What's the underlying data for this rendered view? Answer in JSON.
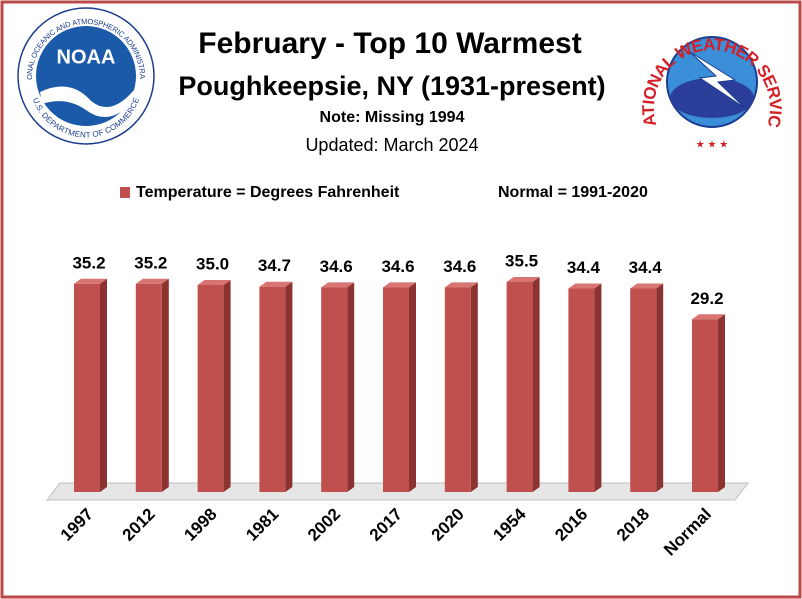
{
  "chart_data": {
    "type": "bar",
    "title": "February - Top 10 Warmest",
    "subtitle": "Poughkeepsie, NY (1931-present)",
    "note": "Note: Missing 1994",
    "updated": "Updated:  March 2024",
    "normal_note": "Normal = 1991-2020",
    "categories": [
      "1997",
      "2012",
      "1998",
      "1981",
      "2002",
      "2017",
      "2020",
      "1954",
      "2016",
      "2018",
      "Normal"
    ],
    "series": [
      {
        "name": "Temperature = Degrees Fahrenheit",
        "color": "#c0504d",
        "values": [
          35.2,
          35.2,
          35.0,
          34.7,
          34.6,
          34.6,
          34.6,
          35.5,
          34.4,
          34.4,
          29.2
        ],
        "value_labels": [
          "35.2",
          "35.2",
          "35.0",
          "34.7",
          "34.6",
          "34.6",
          "34.6",
          "35.5",
          "34.4",
          "34.4",
          "29.2"
        ]
      }
    ],
    "logos": {
      "noaa": "NOAA",
      "noaa_ring_top": "NATIONAL OCEANIC AND ATMOSPHERIC ADMINISTRATION",
      "noaa_ring_bottom": "U.S. DEPARTMENT OF COMMERCE",
      "nws_ring": "NATIONAL WEATHER SERVICE"
    }
  }
}
